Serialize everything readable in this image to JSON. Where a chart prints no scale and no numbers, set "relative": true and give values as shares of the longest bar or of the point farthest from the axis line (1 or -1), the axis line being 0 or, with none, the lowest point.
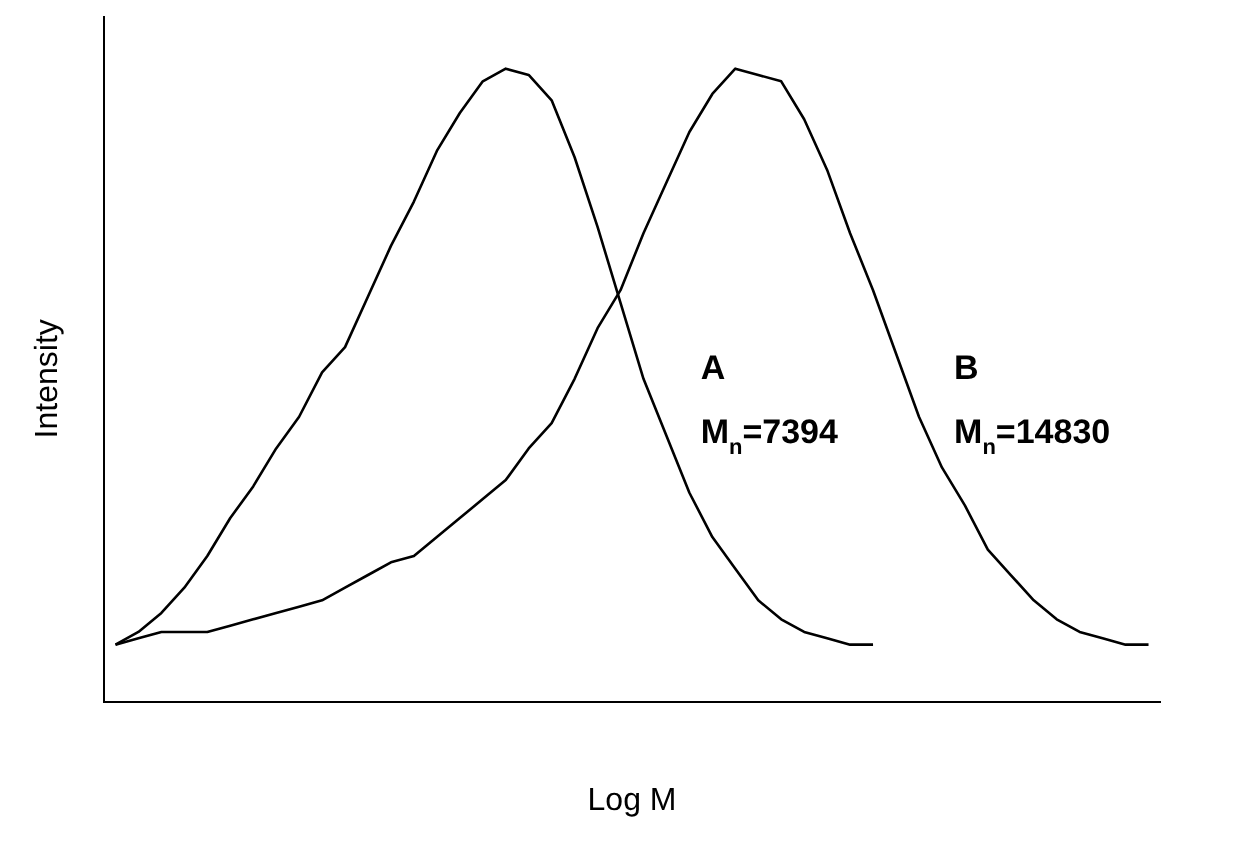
{
  "chart_data": {
    "type": "line",
    "relative": true,
    "xlabel": "Log M",
    "ylabel": "Intensity",
    "marker": "none",
    "legend": false,
    "categories": [
      null,
      null,
      null,
      null,
      null,
      null,
      null,
      null,
      null,
      null,
      null,
      null,
      null,
      null,
      null,
      null,
      null,
      null,
      null,
      null,
      null,
      null,
      null,
      null,
      null,
      null,
      null,
      null,
      null,
      null,
      null,
      null,
      null,
      null,
      null,
      null,
      null,
      null,
      null,
      null,
      null,
      null,
      null,
      null,
      null,
      null
    ],
    "series": [
      {
        "color": "#000000",
        "values": [
          0.09,
          0.11,
          0.14,
          0.18,
          0.23,
          0.29,
          0.34,
          0.4,
          0.45,
          0.52,
          0.56,
          0.64,
          0.72,
          0.79,
          0.87,
          0.93,
          0.98,
          1,
          0.99,
          0.95,
          0.86,
          0.75,
          0.63,
          0.51,
          0.42,
          0.33,
          0.26,
          0.21,
          0.16,
          0.13,
          0.11,
          0.1,
          0.09,
          0.09,
          null,
          null,
          null,
          null,
          null,
          null,
          null,
          null,
          null,
          null,
          null,
          null
        ]
      },
      {
        "color": "#000000",
        "values": [
          0.09,
          0.1,
          0.11,
          0.11,
          0.11,
          0.12,
          0.13,
          0.14,
          0.15,
          0.16,
          0.18,
          0.2,
          0.22,
          0.23,
          0.26,
          0.29,
          0.32,
          0.35,
          0.4,
          0.44,
          0.51,
          0.59,
          0.65,
          0.74,
          0.82,
          0.9,
          0.96,
          1,
          0.99,
          0.98,
          0.92,
          0.84,
          0.74,
          0.65,
          0.55,
          0.45,
          0.37,
          0.31,
          0.24,
          0.2,
          0.16,
          0.13,
          0.11,
          0.1,
          0.09,
          0.09
        ]
      }
    ],
    "annotations": [
      "A",
      "M$_{n}$=7394",
      "B",
      "M$_{n}$=14830"
    ]
  }
}
